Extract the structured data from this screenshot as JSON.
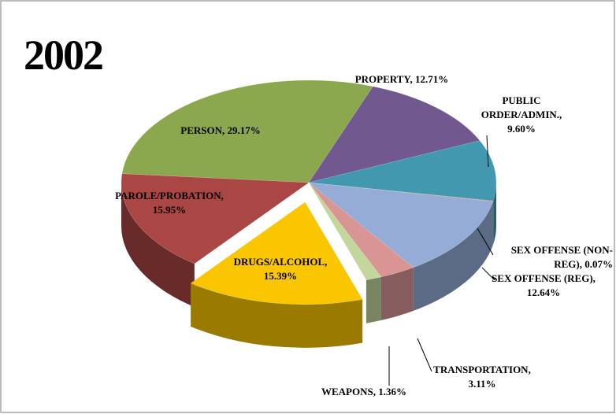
{
  "chart_data": {
    "type": "pie3d",
    "title": "2002",
    "labels": [
      [
        "PROPERTY, 12.71%"
      ],
      [
        "PUBLIC",
        "ORDER/ADMIN.,",
        "9.60%"
      ],
      [
        "SEX OFFENSE (NON-",
        "REG), 0.07%"
      ],
      [
        "SEX OFFENSE (REG),",
        "12.64%"
      ],
      [
        "TRANSPORTATION,",
        "3.11%"
      ],
      [
        "WEAPONS, 1.36%"
      ],
      [
        "DRUGS/ALCOHOL,",
        "15.39%"
      ],
      [
        "PAROLE/PROBATION,",
        "15.95%"
      ],
      [
        "PERSON, 29.17%"
      ]
    ],
    "values": [
      12.71,
      9.6,
      0.07,
      12.64,
      3.11,
      1.36,
      15.39,
      15.95,
      29.17
    ],
    "colors": [
      "#71588f",
      "#4198af",
      "#e46c0a",
      "#95acd6",
      "#d99594",
      "#c3d69b",
      "#f9c600",
      "#aa4643",
      "#8ba84e"
    ],
    "exploded": [
      false,
      false,
      false,
      false,
      false,
      false,
      true,
      false,
      false
    ]
  }
}
